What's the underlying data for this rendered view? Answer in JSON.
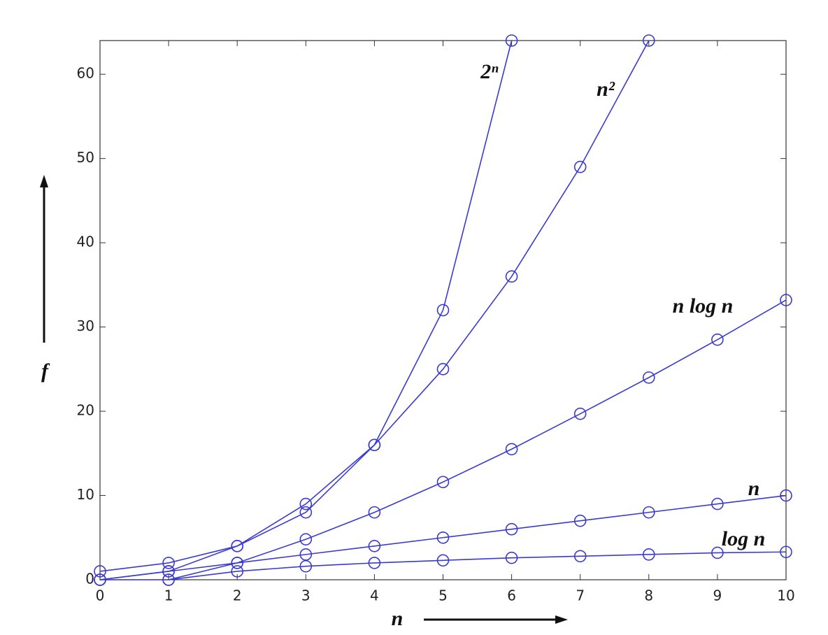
{
  "chart_data": {
    "type": "line",
    "x_label": "n",
    "y_label": "f",
    "x": [
      0,
      1,
      2,
      3,
      4,
      5,
      6,
      7,
      8,
      9,
      10
    ],
    "series": [
      {
        "name": "2ⁿ",
        "color": "#3a3ad0",
        "values": [
          1,
          2,
          4,
          8,
          16,
          32,
          64,
          null,
          null,
          null,
          null
        ]
      },
      {
        "name": "n²",
        "color": "#3a3ad0",
        "values": [
          0,
          1,
          4,
          9,
          16,
          25,
          36,
          49,
          64,
          null,
          null
        ]
      },
      {
        "name": "n log n",
        "color": "#3a3ad0",
        "values": [
          0,
          0,
          2,
          4.8,
          8,
          11.6,
          15.5,
          19.7,
          24,
          28.5,
          33.2
        ]
      },
      {
        "name": "n",
        "color": "#3a3ad0",
        "values": [
          0,
          1,
          2,
          3,
          4,
          5,
          6,
          7,
          8,
          9,
          10
        ]
      },
      {
        "name": "log n",
        "color": "#3a3ad0",
        "values": [
          null,
          0,
          1,
          1.6,
          2,
          2.3,
          2.6,
          2.8,
          3,
          3.2,
          3.3
        ]
      }
    ],
    "xlim": [
      0,
      10
    ],
    "xticks": [
      0,
      1,
      2,
      3,
      4,
      5,
      6,
      7,
      8,
      9,
      10
    ],
    "ylim": [
      0,
      64
    ],
    "yticks": [
      0,
      10,
      20,
      30,
      40,
      50,
      60
    ],
    "markers": true
  }
}
